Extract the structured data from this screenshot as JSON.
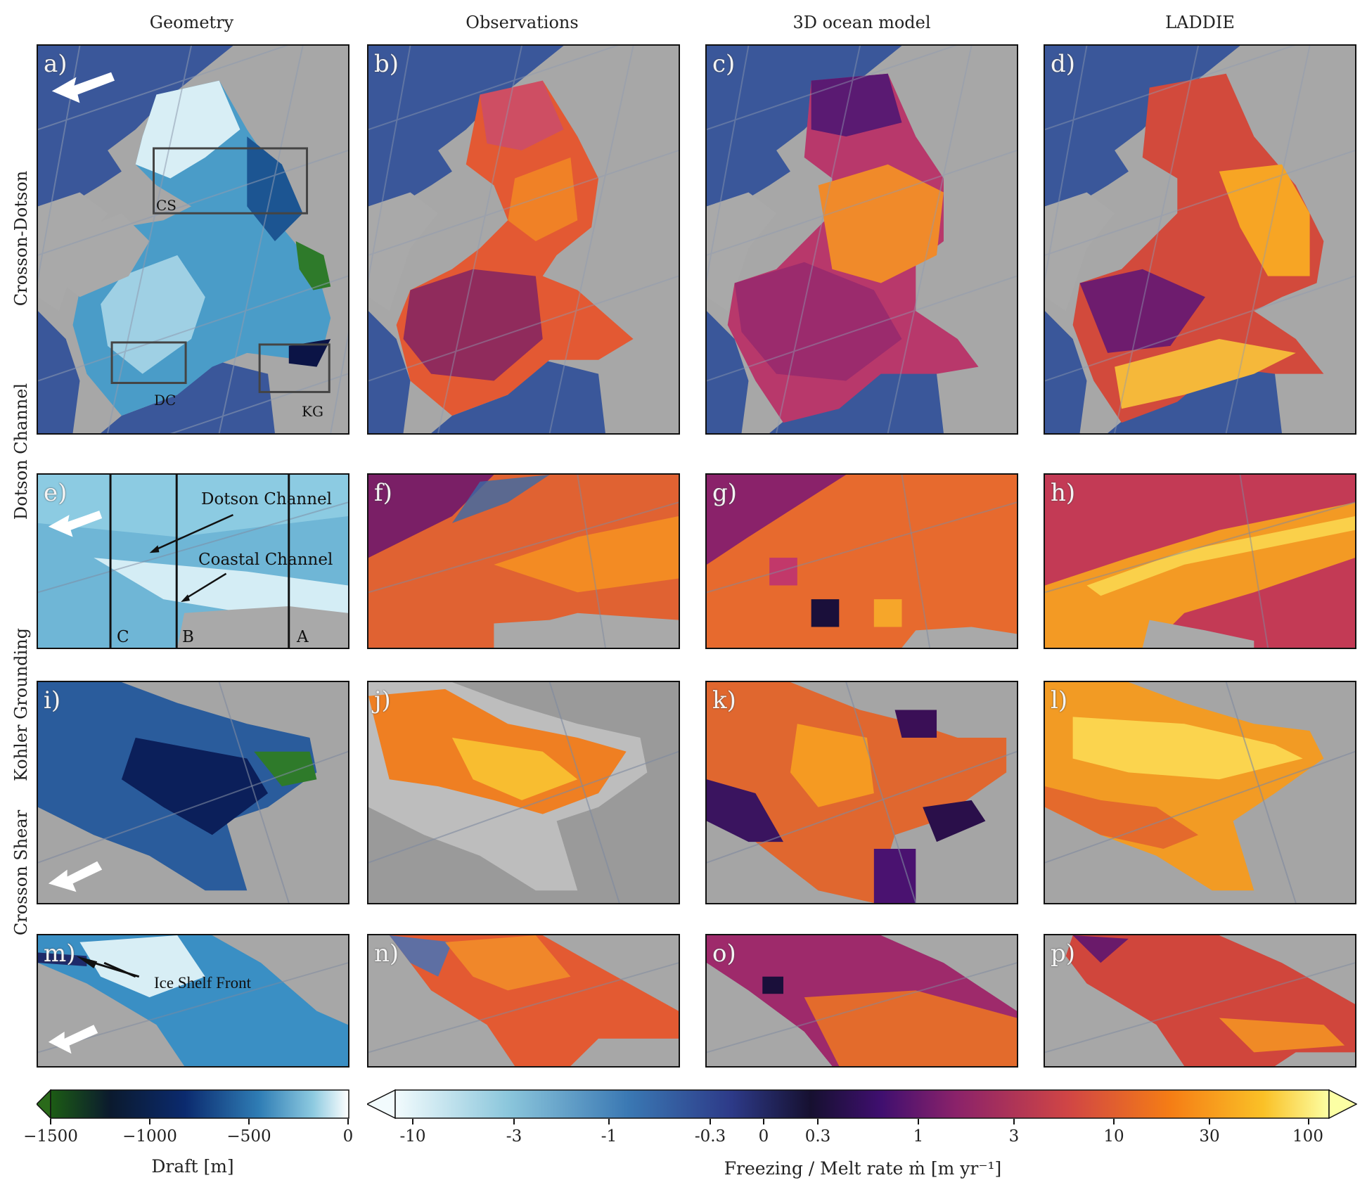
{
  "columns": [
    "Geometry",
    "Observations",
    "3D ocean model",
    "LADDIE"
  ],
  "rows": [
    "Crosson-Dotson",
    "Dotson Channel",
    "Kohler Grounding",
    "Crosson Shear"
  ],
  "panel_labels": [
    "a)",
    "b)",
    "c)",
    "d)",
    "e)",
    "f)",
    "g)",
    "h)",
    "i)",
    "j)",
    "k)",
    "l)",
    "m)",
    "n)",
    "o)",
    "p)"
  ],
  "annotations": {
    "boxes": [
      "CS",
      "DC",
      "KG"
    ],
    "dotson_channel": "Dotson Channel",
    "coastal_channel": "Coastal Channel",
    "sections": [
      "C",
      "B",
      "A"
    ],
    "ice_shelf_front": "Ice Shelf Front"
  },
  "colorbar_draft": {
    "title": "Draft [m]",
    "ticks": [
      "−1500",
      "−1000",
      "−500",
      "0"
    ],
    "colors": [
      "#1c5c14",
      "#0b0f3a",
      "#0a2a6e",
      "#2f7db5",
      "#7ec0dd",
      "#ffffff"
    ]
  },
  "colorbar_melt": {
    "title": "Freezing / Melt rate ṁ [m yr⁻¹]",
    "ticks": [
      "-10",
      "-3",
      "-1",
      "-0.3",
      "0",
      "0.3",
      "1",
      "3",
      "10",
      "30",
      "100"
    ],
    "colors": [
      "#f2fbfd",
      "#8cc7dc",
      "#3a78b3",
      "#2d3a88",
      "#161030",
      "#3f0f6f",
      "#8a226a",
      "#d04545",
      "#f57d15",
      "#fac127",
      "#fcffa4"
    ]
  },
  "colors": {
    "ocean": "#3f5fa0",
    "land_gray": "#a9a9a9",
    "melt_mid": "#e35933"
  }
}
